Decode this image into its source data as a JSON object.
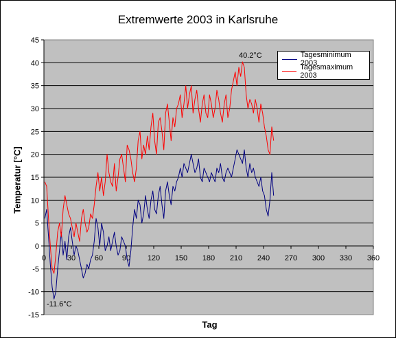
{
  "chart_data": {
    "type": "line",
    "title": "Extremwerte 2003 in Karlsruhe",
    "xlabel": "Tag",
    "ylabel": "Temperatur [°C]",
    "xlim": [
      0,
      360
    ],
    "ylim": [
      -15,
      45
    ],
    "x_ticks": [
      0,
      30,
      60,
      90,
      120,
      150,
      180,
      210,
      240,
      270,
      300,
      330,
      360
    ],
    "y_ticks": [
      -15,
      -10,
      -5,
      0,
      5,
      10,
      15,
      20,
      25,
      30,
      35,
      40,
      45
    ],
    "grid": "horizontal",
    "legend_position": "top-right",
    "background": "#c0c0c0",
    "series": [
      {
        "name": "Tagesminimum 2003",
        "color": "#000080",
        "x": [
          1,
          3,
          5,
          7,
          9,
          11,
          13,
          15,
          17,
          19,
          21,
          23,
          25,
          27,
          29,
          31,
          33,
          35,
          37,
          39,
          41,
          43,
          45,
          47,
          49,
          51,
          53,
          55,
          57,
          59,
          61,
          63,
          65,
          67,
          69,
          71,
          73,
          75,
          77,
          79,
          81,
          83,
          85,
          87,
          89,
          91,
          93,
          95,
          97,
          99,
          101,
          103,
          105,
          107,
          109,
          111,
          113,
          115,
          117,
          119,
          121,
          123,
          125,
          127,
          129,
          131,
          133,
          135,
          137,
          139,
          141,
          143,
          145,
          147,
          149,
          151,
          153,
          155,
          157,
          159,
          161,
          163,
          165,
          167,
          169,
          171,
          173,
          175,
          177,
          179,
          181,
          183,
          185,
          187,
          189,
          191,
          193,
          195,
          197,
          199,
          201,
          203,
          205,
          207,
          209,
          211,
          213,
          215,
          217,
          219,
          221,
          223,
          225,
          227,
          229,
          231,
          233,
          235,
          237,
          239,
          241,
          243,
          245,
          247,
          249,
          251
        ],
        "values": [
          6,
          8,
          2,
          -4,
          -9,
          -11.6,
          -10,
          -5,
          -1,
          3,
          -2,
          1,
          -3,
          2,
          4,
          1,
          -2,
          0,
          -1,
          -3,
          -5,
          -7,
          -6,
          -4,
          -5,
          -3,
          -2,
          1,
          6,
          4,
          0,
          5,
          3,
          -1,
          0,
          2,
          -1,
          1,
          3,
          0,
          -2,
          -1,
          2,
          1,
          0,
          -3,
          -4.5,
          -1,
          4,
          8,
          6,
          10,
          9,
          5,
          7,
          11,
          8,
          6,
          10,
          12,
          8,
          7,
          11,
          13,
          9,
          6,
          12,
          14,
          11,
          9,
          13,
          12,
          14,
          15,
          17,
          15,
          18,
          17,
          16,
          18,
          20,
          18,
          16,
          17,
          19,
          15,
          14,
          17,
          16,
          15,
          14,
          16,
          15,
          14,
          17,
          16,
          18,
          15,
          14,
          16,
          17,
          16,
          15,
          17,
          19,
          21,
          20,
          19,
          18,
          21,
          17,
          15,
          18,
          16,
          17,
          15,
          14,
          13,
          15,
          12,
          11,
          8,
          6.5,
          10,
          16,
          11
        ]
      },
      {
        "name": "Tagesmaximum 2003",
        "color": "#ff0000",
        "x": [
          1,
          3,
          5,
          7,
          9,
          11,
          13,
          15,
          17,
          19,
          21,
          23,
          25,
          27,
          29,
          31,
          33,
          35,
          37,
          39,
          41,
          43,
          45,
          47,
          49,
          51,
          53,
          55,
          57,
          59,
          61,
          63,
          65,
          67,
          69,
          71,
          73,
          75,
          77,
          79,
          81,
          83,
          85,
          87,
          89,
          91,
          93,
          95,
          97,
          99,
          101,
          103,
          105,
          107,
          109,
          111,
          113,
          115,
          117,
          119,
          121,
          123,
          125,
          127,
          129,
          131,
          133,
          135,
          137,
          139,
          141,
          143,
          145,
          147,
          149,
          151,
          153,
          155,
          157,
          159,
          161,
          163,
          165,
          167,
          169,
          171,
          173,
          175,
          177,
          179,
          181,
          183,
          185,
          187,
          189,
          191,
          193,
          195,
          197,
          199,
          201,
          203,
          205,
          207,
          209,
          211,
          213,
          215,
          217,
          219,
          221,
          223,
          225,
          227,
          229,
          231,
          233,
          235,
          237,
          239,
          241,
          243,
          245,
          247,
          249,
          251
        ],
        "values": [
          14,
          13,
          6,
          0,
          -5,
          -6,
          -2,
          3,
          5,
          2,
          8,
          11,
          9,
          7,
          6,
          4,
          2,
          5,
          3,
          1,
          6,
          8,
          5,
          3,
          4,
          7,
          6,
          9,
          13,
          16,
          12,
          15,
          11,
          14,
          20,
          16,
          14,
          13,
          18,
          12,
          15,
          19,
          20,
          17,
          14,
          22,
          21,
          19,
          16,
          14,
          17,
          23,
          25,
          19,
          22,
          20,
          24,
          21,
          26,
          29,
          23,
          20,
          27,
          28,
          25,
          21,
          29,
          31,
          27,
          23,
          28,
          26,
          30,
          31,
          33,
          28,
          31,
          35,
          30,
          33,
          35,
          29,
          32,
          34,
          30,
          27,
          31,
          33,
          29,
          28,
          33,
          31,
          28,
          30,
          34,
          32,
          29,
          27,
          31,
          33,
          28,
          30,
          34,
          36,
          38,
          35,
          39,
          37,
          40.2,
          39,
          33,
          30,
          32,
          31,
          29,
          32,
          30,
          27,
          31,
          29,
          26,
          24,
          21,
          20,
          26,
          23
        ]
      }
    ],
    "annotations": [
      {
        "text": "40.2°C",
        "x": 219,
        "y": 40.2
      },
      {
        "text": "-11.6°C",
        "x": 11,
        "y": -11.6
      }
    ]
  }
}
